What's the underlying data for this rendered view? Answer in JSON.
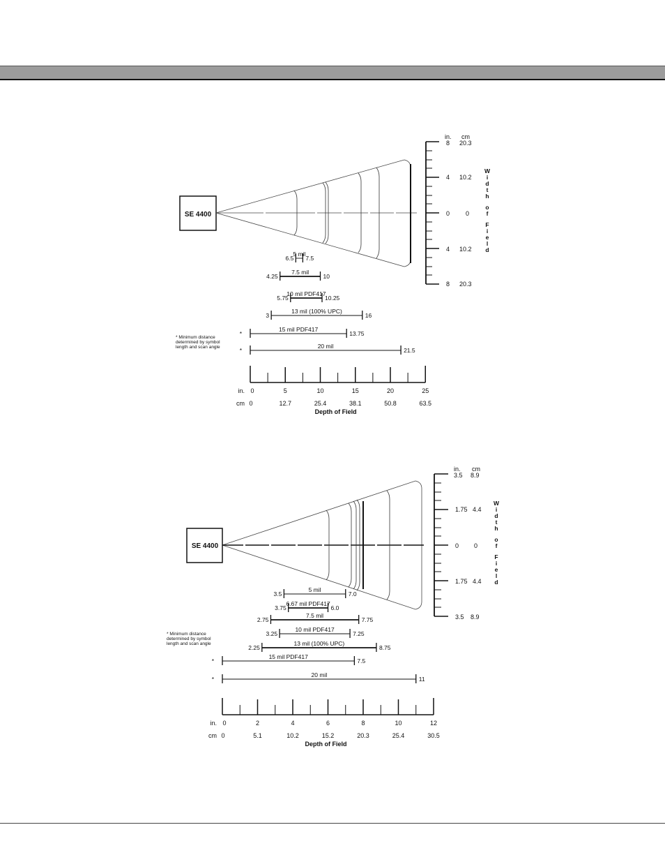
{
  "diagram1": {
    "scanner_label": "SE 4400",
    "ruler_unit_in": "in.",
    "ruler_unit_cm": "cm",
    "ruler_labels": [
      {
        "in": "8",
        "cm": "20.3"
      },
      {
        "in": "4",
        "cm": "10.2"
      },
      {
        "in": "0",
        "cm": "0"
      },
      {
        "in": "4",
        "cm": "10.2"
      },
      {
        "in": "8",
        "cm": "20.3"
      }
    ],
    "width_of_field": "Width of Field",
    "ranges": [
      {
        "label": "5 mil",
        "min": "6.5",
        "max": "7.5",
        "min_val": 6.5,
        "max_val": 7.5
      },
      {
        "label": "7.5 mil",
        "min": "4.25",
        "max": "10",
        "min_val": 4.25,
        "max_val": 10
      },
      {
        "label": "10 mil PDF417",
        "min": "5.75",
        "max": "10.25",
        "min_val": 5.75,
        "max_val": 10.25
      },
      {
        "label": "13 mil (100% UPC)",
        "min": "3",
        "max": "16",
        "min_val": 3,
        "max_val": 16
      },
      {
        "label": "15 mil PDF417",
        "min": "*",
        "max": "13.75",
        "min_val": 0,
        "max_val": 13.75
      },
      {
        "label": "20 mil",
        "min": "*",
        "max": "21.5",
        "min_val": 0,
        "max_val": 21.5
      }
    ],
    "note": [
      "* Minimum distance",
      "determined by symbol",
      "length and scan angle"
    ],
    "axis_unit_in": "in.",
    "axis_unit_cm": "cm",
    "axis_in_labels": [
      "0",
      "5",
      "10",
      "15",
      "20",
      "25"
    ],
    "axis_cm_labels": [
      "0",
      "12.7",
      "25.4",
      "38.1",
      "50.8",
      "63.5"
    ],
    "axis_title": "Depth of Field"
  },
  "diagram2": {
    "scanner_label": "SE 4400",
    "ruler_unit_in": "in.",
    "ruler_unit_cm": "cm",
    "ruler_labels": [
      {
        "in": "3.5",
        "cm": "8.9"
      },
      {
        "in": "1.75",
        "cm": "4.4"
      },
      {
        "in": "0",
        "cm": "0"
      },
      {
        "in": "1.75",
        "cm": "4.4"
      },
      {
        "in": "3.5",
        "cm": "8.9"
      }
    ],
    "width_of_field": "Width of Field",
    "ranges": [
      {
        "label": "5 mil",
        "min": "3.5",
        "max": "7.0",
        "min_val": 3.5,
        "max_val": 7.0
      },
      {
        "label": "6.67 mil PDF417",
        "min": "3.75",
        "max": "6.0",
        "min_val": 3.75,
        "max_val": 6.0
      },
      {
        "label": "7.5 mil",
        "min": "2.75",
        "max": "7.75",
        "min_val": 2.75,
        "max_val": 7.75
      },
      {
        "label": "10 mil PDF417",
        "min": "3.25",
        "max": "7.25",
        "min_val": 3.25,
        "max_val": 7.25
      },
      {
        "label": "13 mil (100% UPC)",
        "min": "2.25",
        "max": "8.75",
        "min_val": 2.25,
        "max_val": 8.75
      },
      {
        "label": "15 mil PDF417",
        "min": "*",
        "max": "7.5",
        "min_val": 0,
        "max_val": 7.5
      },
      {
        "label": "20 mil",
        "min": "*",
        "max": "11",
        "min_val": 0,
        "max_val": 11
      }
    ],
    "note": [
      "* Minimum distance",
      "determined by symbol",
      "length and scan angle"
    ],
    "axis_unit_in": "in.",
    "axis_unit_cm": "cm",
    "axis_in_labels": [
      "0",
      "2",
      "4",
      "6",
      "8",
      "10",
      "12"
    ],
    "axis_cm_labels": [
      "0",
      "5.1",
      "10.2",
      "15.2",
      "20.3",
      "25.4",
      "30.5"
    ],
    "axis_title": "Depth of Field"
  }
}
